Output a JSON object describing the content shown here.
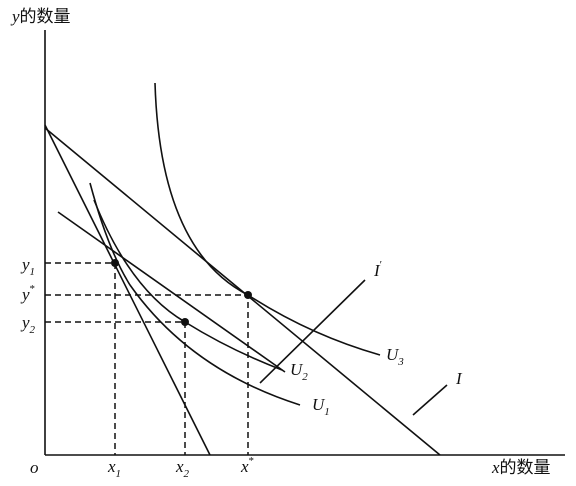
{
  "axes": {
    "y_label": {
      "var": "y",
      "text": "的数量"
    },
    "x_label": {
      "var": "x",
      "text": "的数量"
    },
    "origin": "o"
  },
  "x_points": [
    {
      "base": "x",
      "sub": "1"
    },
    {
      "base": "x",
      "sub": "2"
    },
    {
      "base": "x",
      "sup": "*"
    }
  ],
  "y_points": [
    {
      "base": "y",
      "sub": "1"
    },
    {
      "base": "y",
      "sup": "*"
    },
    {
      "base": "y",
      "sub": "2"
    }
  ],
  "curves": [
    {
      "base": "U",
      "sub": "1"
    },
    {
      "base": "U",
      "sub": "2"
    },
    {
      "base": "U",
      "sub": "3"
    }
  ],
  "lines": [
    {
      "base": "I"
    },
    {
      "base": "I",
      "sup": "′"
    }
  ]
}
